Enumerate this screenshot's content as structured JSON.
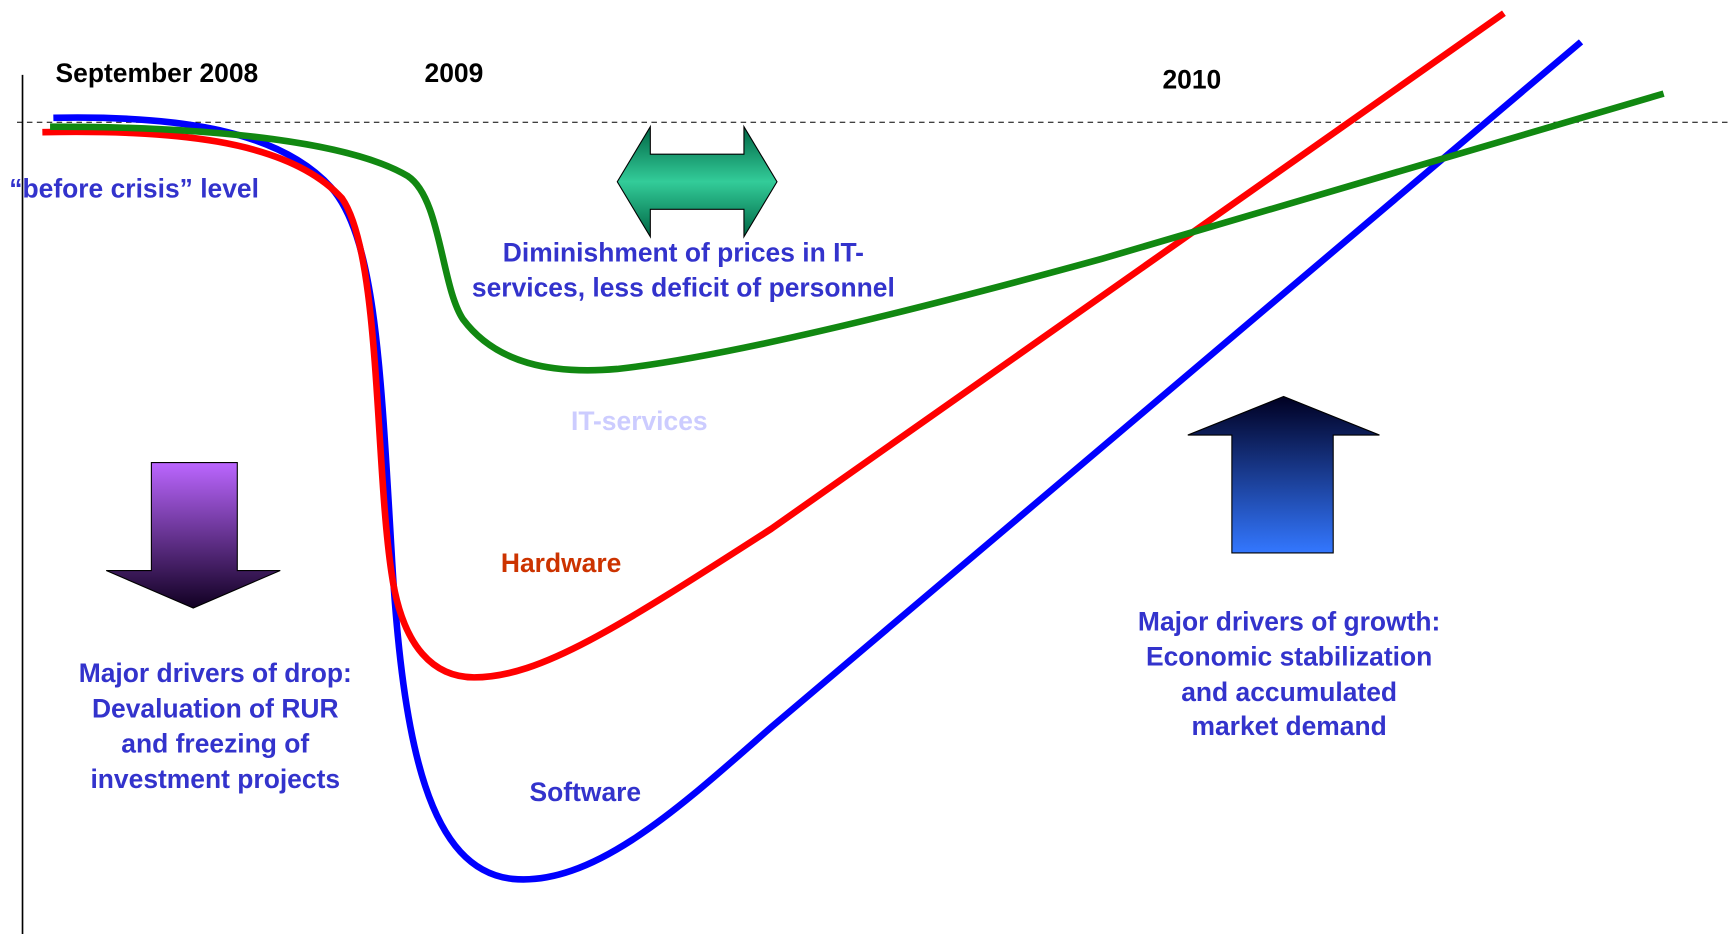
{
  "header": {
    "periods": [
      "September 2008",
      "2009",
      "2010"
    ]
  },
  "before_crisis": "“before crisis” level",
  "services_note": [
    "Diminishment of prices in IT-",
    "services, less deficit of personnel"
  ],
  "curve_labels": {
    "it_services": "IT-services",
    "hardware": "Hardware",
    "software": "Software"
  },
  "drop_drivers": [
    "Major drivers of drop:",
    "Devaluation of RUR",
    "and freezing of",
    "investment projects"
  ],
  "growth_drivers": [
    "Major drivers of growth:",
    "Economic stabilization",
    "and accumulated",
    "market demand"
  ]
}
